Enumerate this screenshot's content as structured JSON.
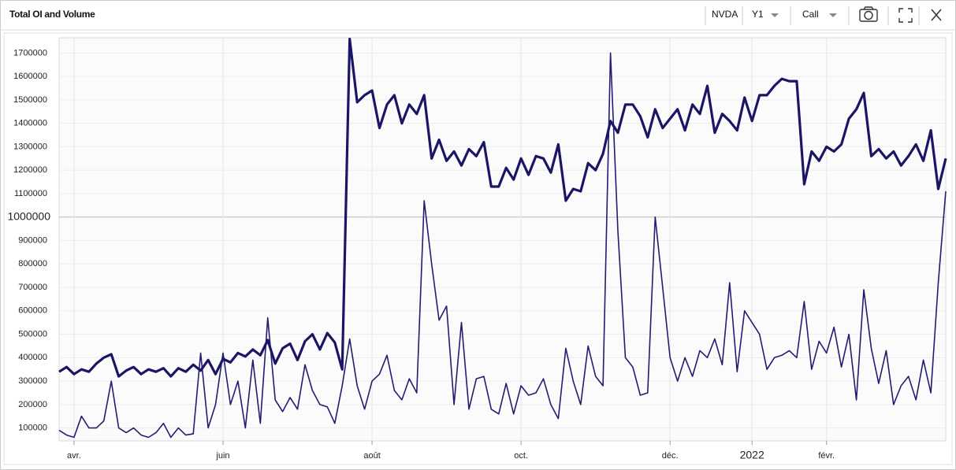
{
  "toolbar": {
    "symbol": "NVDA",
    "period": "Y1",
    "option_type": "Call"
  },
  "chart_data": {
    "type": "line",
    "title": "Total OI and Volume",
    "categories": [
      null,
      null,
      "avr.",
      null,
      null,
      null,
      null,
      null,
      null,
      null,
      null,
      null,
      null,
      null,
      null,
      null,
      null,
      null,
      null,
      null,
      null,
      null,
      "juin",
      null,
      null,
      null,
      null,
      null,
      null,
      null,
      null,
      null,
      null,
      null,
      null,
      null,
      null,
      null,
      null,
      null,
      null,
      null,
      "août",
      null,
      null,
      null,
      null,
      null,
      null,
      null,
      null,
      null,
      null,
      null,
      null,
      null,
      null,
      null,
      null,
      null,
      null,
      null,
      "oct.",
      null,
      null,
      null,
      null,
      null,
      null,
      null,
      null,
      null,
      null,
      null,
      null,
      null,
      null,
      null,
      null,
      null,
      null,
      null,
      "déc.",
      null,
      null,
      null,
      null,
      null,
      null,
      null,
      null,
      null,
      null,
      "2022",
      null,
      null,
      null,
      null,
      null,
      null,
      null,
      null,
      null,
      "févr.",
      null,
      null,
      null,
      null,
      null,
      null,
      null,
      null,
      null,
      null,
      null,
      null,
      null,
      null,
      null,
      null
    ],
    "series": [
      {
        "color": "#1b1566",
        "line_width": 3.2,
        "values": [
          340000,
          360000,
          330000,
          350000,
          340000,
          375000,
          400000,
          415000,
          320000,
          345000,
          360000,
          330000,
          350000,
          340000,
          355000,
          320000,
          355000,
          340000,
          370000,
          345000,
          390000,
          330000,
          395000,
          380000,
          420000,
          405000,
          435000,
          410000,
          475000,
          375000,
          440000,
          460000,
          390000,
          470000,
          500000,
          435000,
          505000,
          465000,
          350000,
          1760000,
          1490000,
          1520000,
          1540000,
          1380000,
          1480000,
          1520000,
          1400000,
          1480000,
          1440000,
          1520000,
          1250000,
          1330000,
          1240000,
          1280000,
          1220000,
          1290000,
          1260000,
          1320000,
          1130000,
          1130000,
          1210000,
          1160000,
          1250000,
          1180000,
          1260000,
          1250000,
          1190000,
          1310000,
          1070000,
          1120000,
          1110000,
          1230000,
          1200000,
          1270000,
          1410000,
          1360000,
          1480000,
          1480000,
          1430000,
          1340000,
          1460000,
          1380000,
          1420000,
          1460000,
          1370000,
          1480000,
          1440000,
          1560000,
          1360000,
          1440000,
          1410000,
          1370000,
          1510000,
          1410000,
          1520000,
          1520000,
          1560000,
          1590000,
          1580000,
          1580000,
          1140000,
          1280000,
          1240000,
          1300000,
          1280000,
          1310000,
          1420000,
          1460000,
          1530000,
          1260000,
          1290000,
          1250000,
          1280000,
          1220000,
          1260000,
          1310000,
          1240000,
          1370000,
          1120000,
          1250000
        ]
      },
      {
        "color": "#231d72",
        "line_width": 1.6,
        "values": [
          90000,
          70000,
          60000,
          150000,
          100000,
          100000,
          130000,
          300000,
          100000,
          80000,
          100000,
          70000,
          60000,
          80000,
          120000,
          60000,
          100000,
          70000,
          75000,
          420000,
          100000,
          200000,
          420000,
          200000,
          300000,
          100000,
          390000,
          120000,
          570000,
          220000,
          170000,
          230000,
          180000,
          370000,
          260000,
          200000,
          190000,
          120000,
          280000,
          480000,
          280000,
          180000,
          300000,
          330000,
          410000,
          260000,
          220000,
          310000,
          250000,
          1070000,
          800000,
          560000,
          620000,
          200000,
          550000,
          180000,
          310000,
          320000,
          180000,
          160000,
          290000,
          160000,
          280000,
          240000,
          250000,
          310000,
          200000,
          140000,
          440000,
          300000,
          200000,
          450000,
          320000,
          280000,
          1700000,
          940000,
          400000,
          360000,
          240000,
          250000,
          1000000,
          700000,
          400000,
          300000,
          400000,
          320000,
          430000,
          400000,
          480000,
          370000,
          720000,
          340000,
          600000,
          550000,
          500000,
          350000,
          400000,
          410000,
          430000,
          400000,
          640000,
          350000,
          470000,
          420000,
          530000,
          360000,
          500000,
          220000,
          690000,
          440000,
          290000,
          430000,
          200000,
          280000,
          320000,
          220000,
          390000,
          250000,
          720000,
          1110000
        ]
      }
    ],
    "ylim": [
      45000,
      1765000
    ],
    "yticks": [
      100000,
      200000,
      300000,
      400000,
      500000,
      600000,
      700000,
      800000,
      900000,
      1000000,
      1100000,
      1200000,
      1300000,
      1400000,
      1500000,
      1600000,
      1700000
    ],
    "reference_line": 1000000,
    "grid": true
  }
}
